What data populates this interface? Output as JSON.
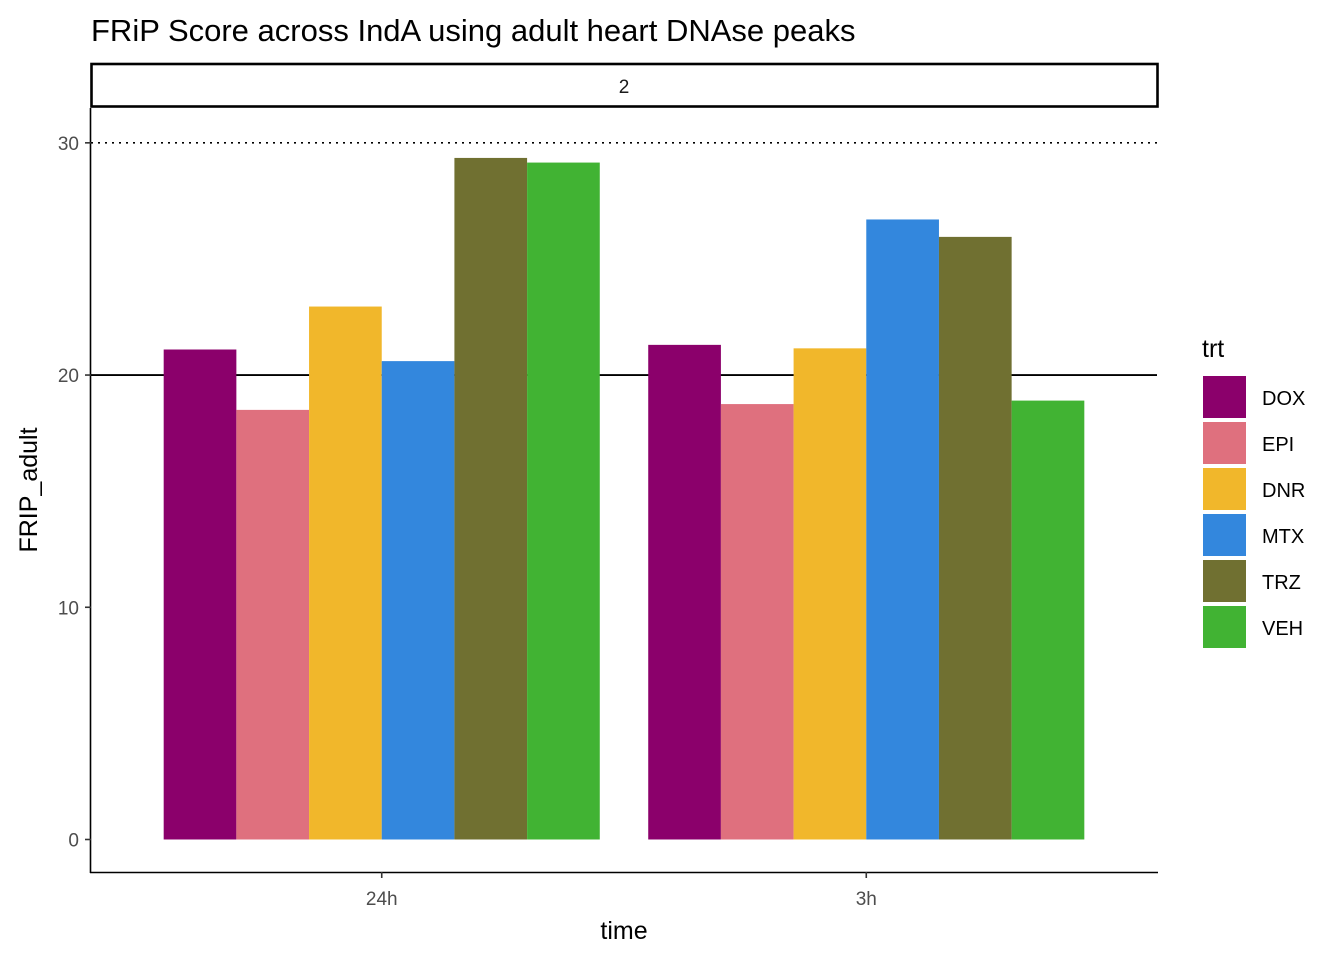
{
  "chart_data": {
    "type": "bar",
    "title": "FRiP Score across IndA  using adult heart DNAse peaks",
    "facet_label": "2",
    "xlabel": "time",
    "ylabel": "FRIP_adult",
    "categories": [
      "24h",
      "3h"
    ],
    "y_ticks": [
      "0",
      "10",
      "20",
      "30"
    ],
    "ylim": [
      -1.4,
      31.5
    ],
    "reference_lines": [
      {
        "value": 30,
        "style": "dotted"
      },
      {
        "value": 20,
        "style": "solid"
      }
    ],
    "legend": {
      "title": "trt",
      "position": "right"
    },
    "series": [
      {
        "name": "DOX",
        "color": "#8B006B",
        "values": [
          21.1,
          21.3
        ]
      },
      {
        "name": "EPI",
        "color": "#DF707E",
        "values": [
          18.5,
          18.75
        ]
      },
      {
        "name": "DNR",
        "color": "#F1B72B",
        "values": [
          22.95,
          21.15
        ]
      },
      {
        "name": "MTX",
        "color": "#3387DD",
        "values": [
          20.6,
          26.7
        ]
      },
      {
        "name": "TRZ",
        "color": "#707031",
        "values": [
          29.35,
          25.95
        ]
      },
      {
        "name": "VEH",
        "color": "#41B333",
        "values": [
          29.15,
          18.9
        ]
      }
    ]
  }
}
